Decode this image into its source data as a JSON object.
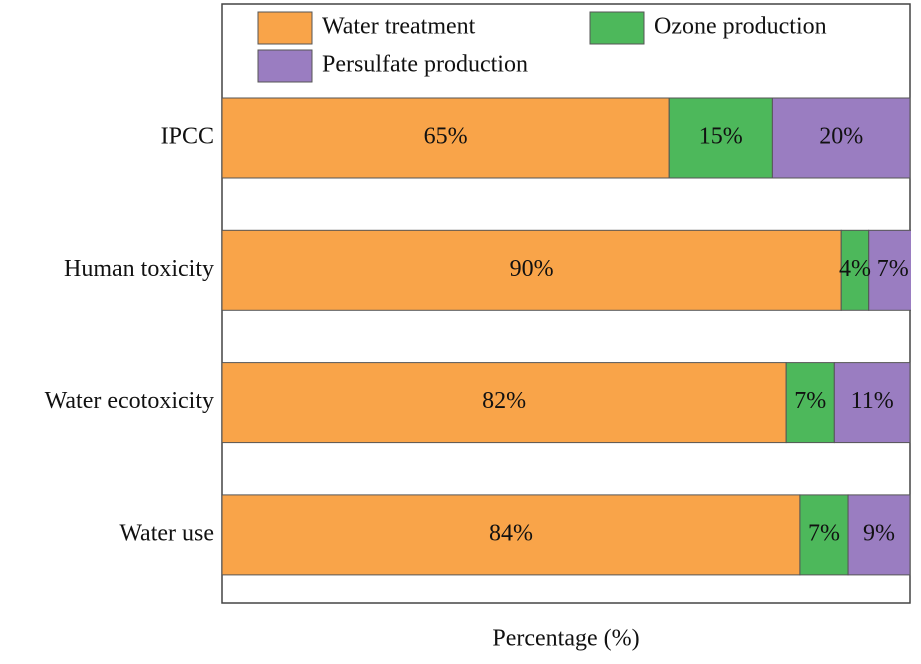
{
  "chart_data": {
    "type": "stacked-barh",
    "categories": [
      "IPCC",
      "Human toxicity",
      "Water ecotoxicity",
      "Water use"
    ],
    "series": [
      {
        "name": "Water treatment",
        "color": "#f9a449",
        "values": [
          65,
          90,
          82,
          84
        ],
        "value_labels": [
          "65%",
          "90%",
          "82%",
          "84%"
        ]
      },
      {
        "name": "Ozone production",
        "color": "#4db85b",
        "values": [
          15,
          4,
          7,
          7
        ],
        "value_labels": [
          "15%",
          "4%",
          "7%",
          "7%"
        ]
      },
      {
        "name": "Persulfate production",
        "color": "#9a7dc1",
        "values": [
          20,
          7,
          11,
          9
        ],
        "value_labels": [
          "20%",
          "7%",
          "11%",
          "9%"
        ]
      }
    ],
    "xlabel": "Percentage (%)",
    "xlim": [
      0,
      100
    ]
  }
}
